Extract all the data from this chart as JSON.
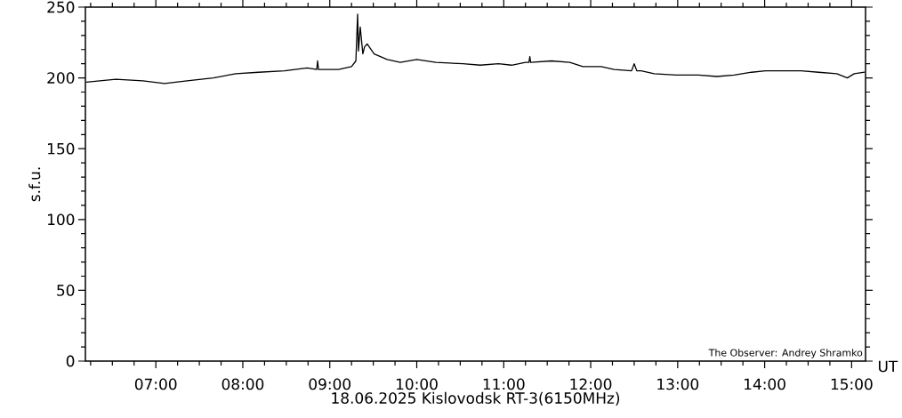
{
  "chart_data": {
    "type": "line",
    "xlabel": "18.06.2025 Kislovodsk RT-3(6150MHz)",
    "ylabel": "s.f.u.",
    "annotations": [
      "The Observer: Andrey Shramko",
      "UT"
    ],
    "color": "#000000",
    "x": [
      6.2,
      6.54,
      6.85,
      7.1,
      7.36,
      7.66,
      7.92,
      8.18,
      8.48,
      8.74,
      8.85,
      8.86,
      8.87,
      9.1,
      9.25,
      9.3,
      9.32,
      9.33,
      9.35,
      9.38,
      9.4,
      9.43,
      9.51,
      9.66,
      9.81,
      10.0,
      10.22,
      10.53,
      10.73,
      10.94,
      11.09,
      11.25,
      11.29,
      11.3,
      11.31,
      11.55,
      11.76,
      11.91,
      12.12,
      12.27,
      12.47,
      12.5,
      12.53,
      12.58,
      12.73,
      12.98,
      13.24,
      13.45,
      13.65,
      13.85,
      14.01,
      14.21,
      14.42,
      14.62,
      14.83,
      14.95,
      15.03,
      15.15
    ],
    "values": [
      197,
      199,
      198,
      196,
      198,
      200,
      203,
      204,
      205,
      207,
      206,
      212,
      206,
      206,
      208,
      212,
      245,
      219,
      236,
      217,
      222,
      224,
      217,
      213,
      211,
      213,
      211,
      210,
      209,
      210,
      209,
      211,
      211,
      215,
      211,
      212,
      211,
      208,
      208,
      206,
      205,
      210,
      205,
      205,
      203,
      202,
      202,
      201,
      202,
      204,
      205,
      205,
      205,
      204,
      203,
      200,
      203,
      204
    ],
    "xlim": [
      6.19,
      15.16
    ],
    "ylim": [
      0,
      250
    ],
    "xticks": [
      {
        "value": 6.25,
        "label": null
      },
      {
        "value": 6.5,
        "label": null
      },
      {
        "value": 6.75,
        "label": null
      },
      {
        "value": 7,
        "label": "07:00"
      },
      {
        "value": 7.25,
        "label": null
      },
      {
        "value": 7.5,
        "label": null
      },
      {
        "value": 7.75,
        "label": null
      },
      {
        "value": 8,
        "label": "08:00"
      },
      {
        "value": 8.25,
        "label": null
      },
      {
        "value": 8.5,
        "label": null
      },
      {
        "value": 8.75,
        "label": null
      },
      {
        "value": 9,
        "label": "09:00"
      },
      {
        "value": 9.25,
        "label": null
      },
      {
        "value": 9.5,
        "label": null
      },
      {
        "value": 9.75,
        "label": null
      },
      {
        "value": 10,
        "label": "10:00"
      },
      {
        "value": 10.25,
        "label": null
      },
      {
        "value": 10.5,
        "label": null
      },
      {
        "value": 10.75,
        "label": null
      },
      {
        "value": 11,
        "label": "11:00"
      },
      {
        "value": 11.25,
        "label": null
      },
      {
        "value": 11.5,
        "label": null
      },
      {
        "value": 11.75,
        "label": null
      },
      {
        "value": 12,
        "label": "12:00"
      },
      {
        "value": 12.25,
        "label": null
      },
      {
        "value": 12.5,
        "label": null
      },
      {
        "value": 12.75,
        "label": null
      },
      {
        "value": 13,
        "label": "13:00"
      },
      {
        "value": 13.25,
        "label": null
      },
      {
        "value": 13.5,
        "label": null
      },
      {
        "value": 13.75,
        "label": null
      },
      {
        "value": 14,
        "label": "14:00"
      },
      {
        "value": 14.25,
        "label": null
      },
      {
        "value": 14.5,
        "label": null
      },
      {
        "value": 14.75,
        "label": null
      },
      {
        "value": 15,
        "label": "15:00"
      }
    ],
    "yticks": [
      0,
      {
        "value": 10,
        "label": null
      },
      {
        "value": 20,
        "label": null
      },
      {
        "value": 30,
        "label": null
      },
      {
        "value": 40,
        "label": null
      },
      50,
      {
        "value": 60,
        "label": null
      },
      {
        "value": 70,
        "label": null
      },
      {
        "value": 80,
        "label": null
      },
      {
        "value": 90,
        "label": null
      },
      100,
      {
        "value": 110,
        "label": null
      },
      {
        "value": 120,
        "label": null
      },
      {
        "value": 130,
        "label": null
      },
      {
        "value": 140,
        "label": null
      },
      150,
      {
        "value": 160,
        "label": null
      },
      {
        "value": 170,
        "label": null
      },
      {
        "value": 180,
        "label": null
      },
      {
        "value": 190,
        "label": null
      },
      200,
      {
        "value": 210,
        "label": null
      },
      {
        "value": 220,
        "label": null
      },
      {
        "value": 230,
        "label": null
      },
      {
        "value": 240,
        "label": null
      },
      250
    ]
  }
}
